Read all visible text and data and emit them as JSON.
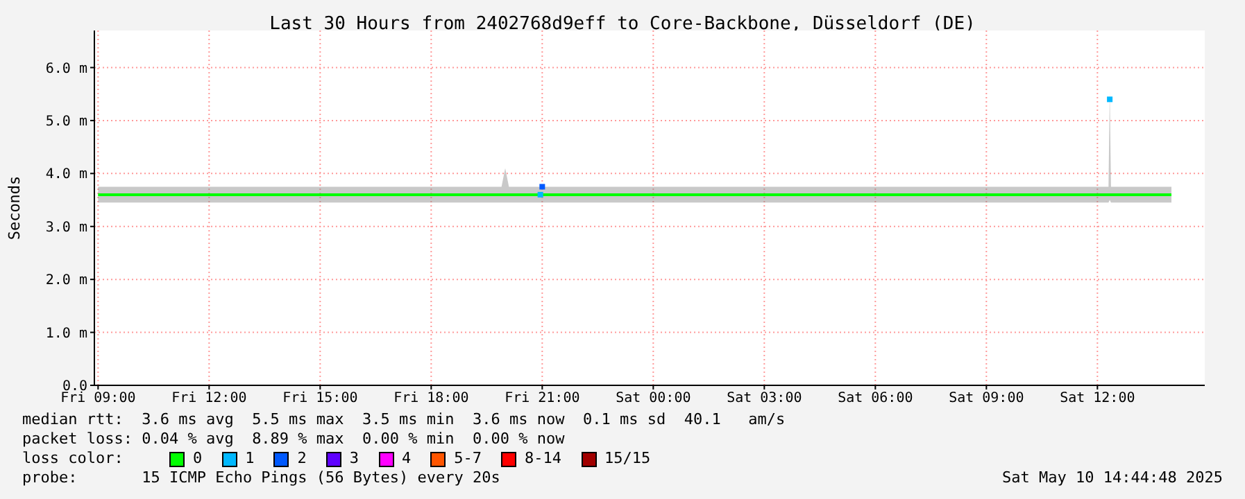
{
  "chart_data": {
    "type": "line",
    "title": "Last 30 Hours from 2402768d9eff to Core-Backbone, Düsseldorf (DE)",
    "ylabel": "Seconds",
    "xlim": [
      "2025-05-09T08:54",
      "2025-05-10T14:54"
    ],
    "xticks": [
      {
        "value": "2025-05-09T09:00",
        "label": "Fri 09:00"
      },
      {
        "value": "2025-05-09T12:00",
        "label": "Fri 12:00"
      },
      {
        "value": "2025-05-09T15:00",
        "label": "Fri 15:00"
      },
      {
        "value": "2025-05-09T18:00",
        "label": "Fri 18:00"
      },
      {
        "value": "2025-05-09T21:00",
        "label": "Fri 21:00"
      },
      {
        "value": "2025-05-10T00:00",
        "label": "Sat 00:00"
      },
      {
        "value": "2025-05-10T03:00",
        "label": "Sat 03:00"
      },
      {
        "value": "2025-05-10T06:00",
        "label": "Sat 06:00"
      },
      {
        "value": "2025-05-10T09:00",
        "label": "Sat 09:00"
      },
      {
        "value": "2025-05-10T12:00",
        "label": "Sat 12:00"
      }
    ],
    "ylim": [
      0,
      6.7
    ],
    "yticks": [
      {
        "value": 0,
        "label": "0.0"
      },
      {
        "value": 1,
        "label": "1.0 m"
      },
      {
        "value": 2,
        "label": "2.0 m"
      },
      {
        "value": 3,
        "label": "3.0 m"
      },
      {
        "value": 4,
        "label": "4.0 m"
      },
      {
        "value": 5,
        "label": "5.0 m"
      },
      {
        "value": 6,
        "label": "6.0 m"
      }
    ],
    "grid": true,
    "legend": "bottom",
    "legend_title": "loss color:",
    "series": [
      {
        "name": "0",
        "color": "#00ff00",
        "x": [
          "2025-05-09T09:00",
          "2025-05-09T10:00",
          "2025-05-09T11:00",
          "2025-05-09T12:00",
          "2025-05-09T13:00",
          "2025-05-09T14:00",
          "2025-05-09T15:00",
          "2025-05-09T16:00",
          "2025-05-09T17:00",
          "2025-05-09T18:00",
          "2025-05-09T19:00",
          "2025-05-09T19:54",
          "2025-05-09T20:00",
          "2025-05-09T20:06",
          "2025-05-09T21:00",
          "2025-05-09T22:00",
          "2025-05-09T23:00",
          "2025-05-10T00:00",
          "2025-05-10T01:00",
          "2025-05-10T02:00",
          "2025-05-10T03:00",
          "2025-05-10T04:00",
          "2025-05-10T05:00",
          "2025-05-10T06:00",
          "2025-05-10T07:00",
          "2025-05-10T08:00",
          "2025-05-10T09:00",
          "2025-05-10T10:00",
          "2025-05-10T11:00",
          "2025-05-10T12:00",
          "2025-05-10T12:18",
          "2025-05-10T12:20",
          "2025-05-10T12:22",
          "2025-05-10T13:00",
          "2025-05-10T14:00"
        ],
        "values": [
          3.6,
          3.6,
          3.6,
          3.6,
          3.6,
          3.6,
          3.6,
          3.6,
          3.6,
          3.6,
          3.6,
          3.6,
          3.6,
          3.6,
          3.6,
          3.6,
          3.6,
          3.6,
          3.6,
          3.6,
          3.6,
          3.6,
          3.6,
          3.6,
          3.6,
          3.6,
          3.6,
          3.6,
          3.6,
          3.6,
          3.6,
          3.6,
          3.6,
          3.6,
          3.6
        ],
        "lower": [
          3.45,
          3.45,
          3.45,
          3.45,
          3.45,
          3.45,
          3.45,
          3.45,
          3.45,
          3.45,
          3.45,
          3.45,
          3.45,
          3.45,
          3.45,
          3.45,
          3.45,
          3.45,
          3.45,
          3.45,
          3.45,
          3.45,
          3.45,
          3.45,
          3.45,
          3.45,
          3.45,
          3.45,
          3.45,
          3.45,
          3.45,
          3.5,
          3.45,
          3.45,
          3.45
        ],
        "upper": [
          3.75,
          3.75,
          3.75,
          3.75,
          3.75,
          3.75,
          3.75,
          3.75,
          3.75,
          3.75,
          3.75,
          3.75,
          4.1,
          3.75,
          3.75,
          3.75,
          3.75,
          3.75,
          3.75,
          3.75,
          3.75,
          3.75,
          3.75,
          3.75,
          3.75,
          3.75,
          3.75,
          3.75,
          3.75,
          3.75,
          3.75,
          5.55,
          3.75,
          3.75,
          3.75
        ]
      },
      {
        "name": "1",
        "color": "#00b8ff",
        "type": "scatter",
        "marker": "square",
        "x": [
          "2025-05-09T20:57",
          "2025-05-10T12:20"
        ],
        "values": [
          3.6,
          5.4
        ]
      },
      {
        "name": "2",
        "color": "#0059ff",
        "type": "scatter",
        "marker": "square",
        "x": [
          "2025-05-09T21:00"
        ],
        "values": [
          3.75
        ]
      },
      {
        "name": "3",
        "color": "#5e00ff",
        "type": "scatter"
      },
      {
        "name": "4",
        "color": "#ff00ff",
        "type": "scatter"
      },
      {
        "name": "5-7",
        "color": "#ff5500",
        "type": "scatter"
      },
      {
        "name": "8-14",
        "color": "#ff0000",
        "type": "scatter"
      },
      {
        "name": "15/15",
        "color": "#a10000",
        "type": "scatter"
      }
    ],
    "annotations": [
      "median rtt:  3.6 ms avg  5.5 ms max  3.5 ms min  3.6 ms now  0.1 ms sd  40.1   am/s",
      "packet loss: 0.04 % avg  8.89 % max  0.00 % min  0.00 % now",
      "probe:       15 ICMP Echo Pings (56 Bytes) every 20s",
      "Sat May 10 14:44:48 2025"
    ]
  }
}
